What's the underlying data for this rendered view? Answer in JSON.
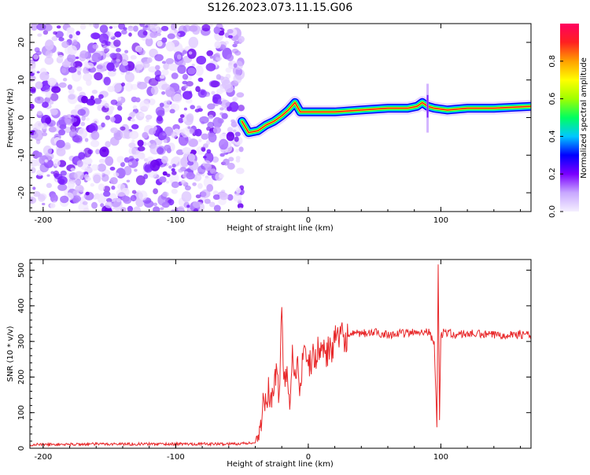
{
  "title": "S126.2023.073.11.15.G06",
  "colorbar": {
    "label": "Normalized spectral amplitude",
    "ticks": [
      "0.0",
      "0.2",
      "0.4",
      "0.6",
      "0.8"
    ],
    "tick_values": [
      0.0,
      0.2,
      0.4,
      0.6,
      0.8
    ],
    "range": [
      0,
      1
    ],
    "colors": [
      "#f5f0ff",
      "#c8a8ff",
      "#7a00ff",
      "#0000ff",
      "#00c8ff",
      "#00ff60",
      "#a0ff00",
      "#ffff00",
      "#ffa000",
      "#ff2020",
      "#ff0060"
    ]
  },
  "chart_data": [
    {
      "type": "heatmap",
      "xlabel": "Height of straight line (km)",
      "ylabel": "Frequency (Hz)",
      "xlim": [
        -210,
        168
      ],
      "ylim": [
        -25,
        25
      ],
      "x_ticks": [
        -200,
        -100,
        0,
        100
      ],
      "y_ticks": [
        -20,
        -10,
        0,
        10,
        20
      ],
      "noise_region_x": [
        -210,
        -50
      ],
      "ridge": {
        "x": [
          -50,
          -45,
          -38,
          -32,
          -26,
          -20,
          -15,
          -10,
          -6,
          0,
          20,
          40,
          60,
          75,
          82,
          86,
          90,
          95,
          105,
          120,
          140,
          168
        ],
        "freq": [
          -1.0,
          -4.0,
          -3.5,
          -2.0,
          -1.0,
          0.5,
          2.0,
          4.0,
          1.5,
          1.5,
          1.5,
          2.0,
          2.5,
          2.5,
          3.0,
          4.0,
          3.0,
          2.5,
          2.0,
          2.5,
          2.5,
          3.0
        ]
      },
      "colors": {
        "ridge_peak": "#ff2020",
        "ridge_mid": "#00ff60",
        "ridge_edge": "#0000ff",
        "noise": "#7a00ff"
      }
    },
    {
      "type": "line",
      "xlabel": "Height of straight line (km)",
      "ylabel": "SNR (10 * v/v)",
      "xlim": [
        -210,
        168
      ],
      "ylim": [
        0,
        530
      ],
      "x_ticks": [
        -200,
        -100,
        0,
        100
      ],
      "y_ticks": [
        0,
        100,
        200,
        300,
        400,
        500
      ],
      "series": [
        {
          "color": "#e8282a",
          "x": [
            -210,
            -150,
            -100,
            -60,
            -40,
            -35,
            -30,
            -28,
            -25,
            -22,
            -20,
            -18,
            -16,
            -14,
            -12,
            -10,
            -8,
            -6,
            -4,
            -2,
            0,
            5,
            10,
            15,
            20,
            25,
            30,
            35,
            40,
            50,
            60,
            70,
            80,
            90,
            95,
            97,
            98,
            99,
            100,
            102,
            105,
            110,
            120,
            130,
            140,
            150,
            160,
            168
          ],
          "y": [
            10,
            12,
            12,
            12,
            15,
            100,
            160,
            120,
            220,
            140,
            380,
            180,
            230,
            140,
            260,
            200,
            250,
            160,
            260,
            240,
            230,
            260,
            280,
            270,
            300,
            310,
            315,
            320,
            322,
            325,
            320,
            322,
            325,
            330,
            300,
            60,
            520,
            80,
            310,
            330,
            325,
            318,
            322,
            320,
            318,
            320,
            320,
            318
          ]
        }
      ]
    }
  ]
}
